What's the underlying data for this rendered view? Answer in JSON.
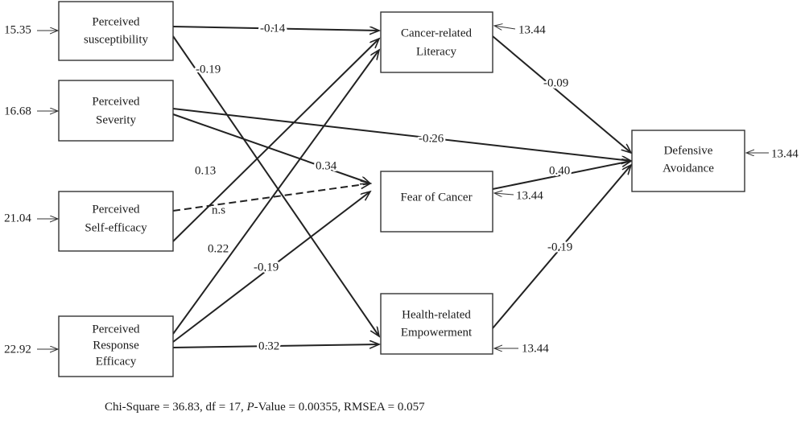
{
  "nodes": [
    {
      "label": [
        "Perceived",
        "susceptibility"
      ],
      "error": "15.35"
    },
    {
      "label": [
        "Perceived",
        "Severity"
      ],
      "error": "16.68"
    },
    {
      "label": [
        "Perceived",
        "Self-efficacy"
      ],
      "error": "21.04"
    },
    {
      "label": [
        "Perceived",
        "Response",
        "Efficacy"
      ],
      "error": "22.92"
    },
    {
      "label": [
        "Cancer-related",
        "Literacy"
      ],
      "error": "13.44"
    },
    {
      "label": [
        "Fear of Cancer"
      ],
      "error": "13.44"
    },
    {
      "label": [
        "Health-related",
        "Empowerment"
      ],
      "error": "13.44"
    },
    {
      "label": [
        "Defensive",
        "Avoidance"
      ],
      "error": "13.44"
    }
  ],
  "edges": [
    {
      "label": "-0.14"
    },
    {
      "label": "-0.19"
    },
    {
      "label": "-0.26"
    },
    {
      "label": "0.34"
    },
    {
      "label": "0.13"
    },
    {
      "label": "n.s"
    },
    {
      "label": "0.22"
    },
    {
      "label": "-0.19"
    },
    {
      "label": "0.32"
    },
    {
      "label": "-0.09"
    },
    {
      "label": "0.40"
    },
    {
      "label": "-0.19"
    }
  ],
  "footer": [
    "Chi-Square = 36.83, df = 17, ",
    "P",
    "-Value = 0.00355, RMSEA = 0.057"
  ]
}
